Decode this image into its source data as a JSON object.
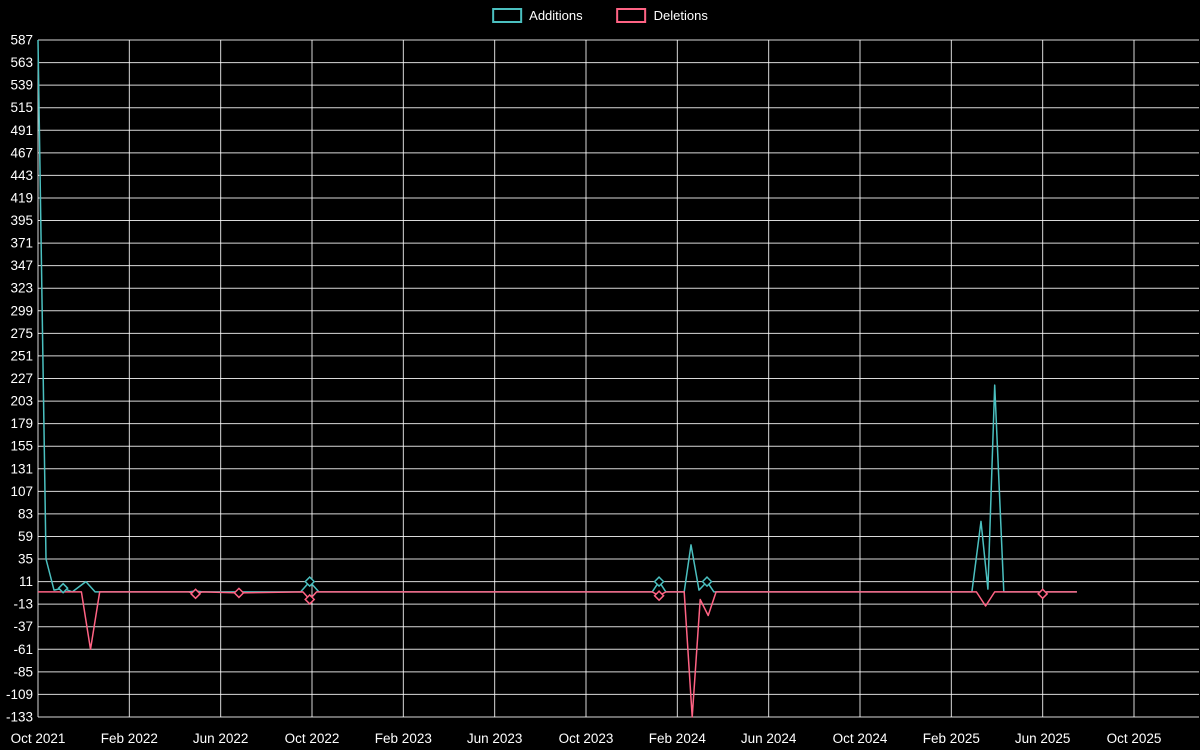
{
  "legend": {
    "items": [
      {
        "label": "Additions",
        "color": "#4bc0c0"
      },
      {
        "label": "Deletions",
        "color": "#ff6384"
      }
    ]
  },
  "chart_data": {
    "type": "line",
    "title": "",
    "xlabel": "",
    "ylabel": "",
    "legend_position": "top",
    "grid": true,
    "background": "#000000",
    "grid_color": "rgba(255,255,255,0.85)",
    "text_color": "#ffffff",
    "x_unit": "months since Oct 2021",
    "x_tick_labels": [
      "Oct 2021",
      "Feb 2022",
      "Jun 2022",
      "Oct 2022",
      "Feb 2023",
      "Jun 2023",
      "Oct 2023",
      "Feb 2024",
      "Jun 2024",
      "Oct 2024",
      "Feb 2025",
      "Jun 2025",
      "Oct 2025"
    ],
    "x_tick_month_step": 4,
    "xlim_months": [
      0,
      48
    ],
    "y_ticks": [
      587,
      563,
      539,
      515,
      491,
      467,
      443,
      419,
      395,
      371,
      347,
      323,
      299,
      275,
      251,
      227,
      203,
      179,
      155,
      131,
      107,
      83,
      59,
      35,
      11,
      -13,
      -37,
      -61,
      -85,
      -109,
      -133
    ],
    "ylim": [
      -133,
      587
    ],
    "series": [
      {
        "name": "Additions",
        "color": "#4bc0c0",
        "points": [
          [
            0,
            587
          ],
          [
            0.35,
            35
          ],
          [
            0.7,
            2
          ],
          [
            1.1,
            4
          ],
          [
            1.5,
            0
          ],
          [
            2.1,
            11
          ],
          [
            2.5,
            0
          ],
          [
            6.6,
            0
          ],
          [
            6.9,
            1
          ],
          [
            7.2,
            0
          ],
          [
            11.5,
            0
          ],
          [
            11.9,
            11
          ],
          [
            12.3,
            0
          ],
          [
            26.9,
            0
          ],
          [
            27.2,
            11
          ],
          [
            27.5,
            0
          ],
          [
            28.3,
            0
          ],
          [
            28.6,
            50
          ],
          [
            28.95,
            2
          ],
          [
            29.3,
            11
          ],
          [
            29.6,
            0
          ],
          [
            40.9,
            0
          ],
          [
            41.3,
            75
          ],
          [
            41.6,
            3
          ],
          [
            41.9,
            220
          ],
          [
            42.3,
            0
          ],
          [
            45.5,
            0
          ]
        ],
        "markers": [
          [
            1.1,
            4
          ],
          [
            11.9,
            11
          ],
          [
            27.2,
            11
          ],
          [
            29.3,
            11
          ]
        ]
      },
      {
        "name": "Deletions",
        "color": "#ff6384",
        "points": [
          [
            0,
            0
          ],
          [
            1.9,
            0
          ],
          [
            2.3,
            -61
          ],
          [
            2.7,
            0
          ],
          [
            6.6,
            0
          ],
          [
            6.9,
            -2
          ],
          [
            7.2,
            0
          ],
          [
            8.8,
            -1
          ],
          [
            11.6,
            0
          ],
          [
            11.9,
            -8
          ],
          [
            12.2,
            0
          ],
          [
            26.9,
            0
          ],
          [
            27.2,
            -4
          ],
          [
            27.5,
            0
          ],
          [
            28.3,
            0
          ],
          [
            28.65,
            -133
          ],
          [
            29.0,
            -8
          ],
          [
            29.35,
            -25
          ],
          [
            29.7,
            0
          ],
          [
            41.1,
            0
          ],
          [
            41.5,
            -15
          ],
          [
            41.9,
            0
          ],
          [
            43.8,
            0
          ],
          [
            44,
            -2
          ],
          [
            44.2,
            0
          ],
          [
            45.5,
            0
          ]
        ],
        "markers": [
          [
            6.9,
            -2
          ],
          [
            8.8,
            -1
          ],
          [
            11.9,
            -8
          ],
          [
            27.2,
            -4
          ],
          [
            44,
            -2
          ]
        ]
      }
    ]
  }
}
